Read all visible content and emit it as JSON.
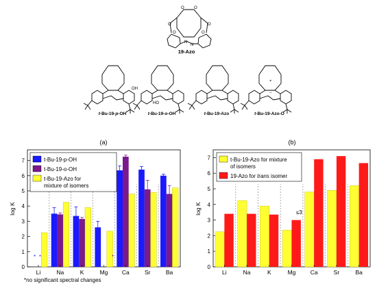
{
  "compounds": [
    {
      "label": "19-Azo"
    },
    {
      "label_prefix": "t",
      "label_main": "-Bu-19-",
      "label_italic": "p",
      "label_suffix": "-OH"
    },
    {
      "label_prefix": "t",
      "label_main": "-Bu-19-",
      "label_italic": "o",
      "label_suffix": "-OH"
    },
    {
      "label_prefix": "t",
      "label_main": "-Bu-19-Azo",
      "label_italic": "",
      "label_suffix": ""
    },
    {
      "label_prefix": "t",
      "label_main": "-Bu-19-Azo-O",
      "label_italic": "",
      "label_suffix": ""
    }
  ],
  "atom_labels": {
    "oxygen": "O",
    "nitrogen": "N",
    "hydroxyl": "OH",
    "hydroxyl_left": "HO",
    "plus": "+",
    "minus": "−"
  },
  "footnote": "*no significant spectral changes",
  "colors": {
    "blue": "#1a1aff",
    "purple": "#7a1a8c",
    "yellow": "#ffff33",
    "red": "#ff1a1a"
  },
  "chart_data": [
    {
      "type": "bar",
      "title": "(a)",
      "ylabel": "log K",
      "xlabel": "",
      "ylim": [
        0,
        7.7
      ],
      "yticks": [
        "0",
        "1",
        "2",
        "3",
        "4",
        "5",
        "6",
        "7"
      ],
      "categories": [
        "Li",
        "Na",
        "K",
        "Mg",
        "Ca",
        "Sr",
        "Ba"
      ],
      "legend_position": "top-left",
      "series": [
        {
          "name": "t-Bu-19-p-OH",
          "color": "#1a1aff",
          "values": [
            null,
            3.5,
            3.35,
            2.6,
            6.35,
            6.4,
            6.0
          ],
          "errors": [
            null,
            0.4,
            0.6,
            0.4,
            0.3,
            0.2,
            0.1
          ]
        },
        {
          "name": "t-Bu-19-o-OH",
          "color": "#7a1a8c",
          "values": [
            null,
            3.45,
            3.15,
            null,
            7.25,
            5.1,
            4.8
          ],
          "errors": [
            null,
            0.1,
            0.1,
            null,
            0.1,
            0.6,
            0.55
          ]
        },
        {
          "name": "t-Bu-19-Azo for mixture of isomers",
          "color": "#ffff33",
          "values": [
            2.25,
            4.25,
            3.9,
            2.35,
            4.8,
            4.9,
            5.2
          ],
          "errors": [
            null,
            null,
            null,
            null,
            null,
            null,
            null
          ]
        }
      ],
      "annotations": [
        "*",
        "*",
        "*"
      ]
    },
    {
      "type": "bar",
      "title": "(b)",
      "ylabel": "log K",
      "xlabel": "",
      "ylim": [
        0,
        7.5
      ],
      "yticks": [
        "0",
        "1",
        "2",
        "3",
        "4",
        "5",
        "6",
        "7"
      ],
      "categories": [
        "Li",
        "Na",
        "K",
        "Mg",
        "Ca",
        "Sr",
        "Ba"
      ],
      "legend_position": "top-left",
      "series": [
        {
          "name": "t-Bu-19-Azo for mixture of isomers",
          "color": "#ffff33",
          "values": [
            2.25,
            4.25,
            3.9,
            2.35,
            4.8,
            4.9,
            5.2
          ]
        },
        {
          "name": "19-Azo for trans isomer",
          "color": "#ff1a1a",
          "values": [
            3.4,
            3.4,
            3.35,
            3.0,
            6.9,
            7.1,
            6.65
          ]
        }
      ],
      "annotations": [
        "≤3"
      ]
    }
  ]
}
